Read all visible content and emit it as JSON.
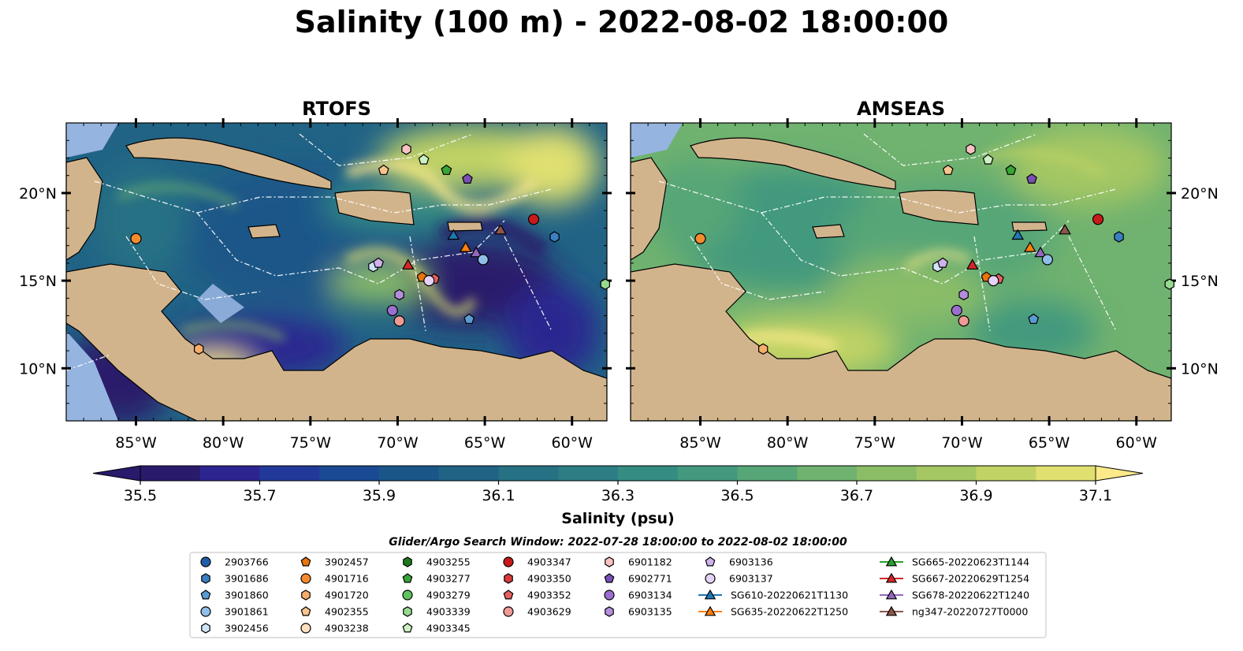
{
  "figure": {
    "title": "Salinity (100 m) - 2022-08-02 18:00:00"
  },
  "panels": [
    {
      "title": "RTOFS"
    },
    {
      "title": "AMSEAS"
    }
  ],
  "colors": {
    "land": "#d2b48c",
    "shelf": "#96b4e0",
    "colormap": [
      "#2a1a6b",
      "#2c2590",
      "#23399a",
      "#1a4a93",
      "#1b5688",
      "#216385",
      "#267184",
      "#2c7e84",
      "#348c82",
      "#43997e",
      "#57a677",
      "#70b26f",
      "#8bbd67",
      "#a5c763",
      "#c1d365",
      "#dfe070",
      "#fbe98a"
    ]
  },
  "chart_data": [
    {
      "type": "heatmap",
      "title": "RTOFS",
      "variable": "Salinity at 100 m",
      "lon_range": [
        -89,
        -58
      ],
      "lat_range": [
        7,
        24
      ],
      "x_ticks": [
        "85°W",
        "80°W",
        "75°W",
        "70°W",
        "65°W",
        "60°W"
      ],
      "y_ticks": [
        "20°N",
        "15°N",
        "10°N"
      ]
    },
    {
      "type": "heatmap",
      "title": "AMSEAS",
      "variable": "Salinity at 100 m",
      "lon_range": [
        -89,
        -58
      ],
      "lat_range": [
        7,
        24
      ],
      "x_ticks": [
        "85°W",
        "80°W",
        "75°W",
        "70°W",
        "65°W",
        "60°W"
      ],
      "y_ticks": [
        "20°N",
        "15°N",
        "10°N"
      ]
    }
  ],
  "colorbar": {
    "label": "Salinity (psu)",
    "min": 35.5,
    "max": 37.1,
    "step": 0.1,
    "ticks": [
      "35.5",
      "35.7",
      "35.9",
      "36.1",
      "36.3",
      "36.5",
      "36.7",
      "36.9",
      "37.1"
    ],
    "extend": "both"
  },
  "legend": {
    "title": "Glider/Argo Search Window: 2022-07-28 18:00:00 to 2022-08-02 18:00:00",
    "columns": [
      [
        {
          "label": "2903766",
          "marker": "circle",
          "color": "#1f5fa6"
        },
        {
          "label": "3901686",
          "marker": "hexagon",
          "color": "#3a7fc1"
        },
        {
          "label": "3901860",
          "marker": "pentagon",
          "color": "#5b9bd5"
        },
        {
          "label": "3901861",
          "marker": "circle",
          "color": "#8fbfe6"
        },
        {
          "label": "3902456",
          "marker": "hexagon",
          "color": "#cfe5f7"
        }
      ],
      [
        {
          "label": "3902457",
          "marker": "pentagon",
          "color": "#e8740c"
        },
        {
          "label": "4901716",
          "marker": "circle",
          "color": "#f58b2e"
        },
        {
          "label": "4901720",
          "marker": "hexagon",
          "color": "#f7ad6a"
        },
        {
          "label": "4902355",
          "marker": "pentagon",
          "color": "#f9c48f"
        },
        {
          "label": "4903238",
          "marker": "circle",
          "color": "#fde0c0"
        }
      ],
      [
        {
          "label": "4903255",
          "marker": "hexagon",
          "color": "#1e7a1e"
        },
        {
          "label": "4903277",
          "marker": "pentagon",
          "color": "#37a537"
        },
        {
          "label": "4903279",
          "marker": "circle",
          "color": "#5fc15f"
        },
        {
          "label": "4903339",
          "marker": "hexagon",
          "color": "#97da8f"
        },
        {
          "label": "4903345",
          "marker": "pentagon",
          "color": "#cdf1c4"
        }
      ],
      [
        {
          "label": "4903347",
          "marker": "circle",
          "color": "#c81a1a"
        },
        {
          "label": "4903350",
          "marker": "hexagon",
          "color": "#d93a3a"
        },
        {
          "label": "4903352",
          "marker": "pentagon",
          "color": "#e56060"
        },
        {
          "label": "4903629",
          "marker": "circle",
          "color": "#f09a96"
        }
      ],
      [
        {
          "label": "6901182",
          "marker": "hexagon",
          "color": "#f8c3c3"
        },
        {
          "label": "6902771",
          "marker": "pentagon",
          "color": "#7a4fb4"
        },
        {
          "label": "6903134",
          "marker": "circle",
          "color": "#9b6fd0"
        },
        {
          "label": "6903135",
          "marker": "hexagon",
          "color": "#b48edc"
        }
      ],
      [
        {
          "label": "6903136",
          "marker": "pentagon",
          "color": "#cfb2ec"
        },
        {
          "label": "6903137",
          "marker": "circle",
          "color": "#e6d2f6"
        },
        {
          "label": "SG610-20220621T1130",
          "marker": "triangle-line",
          "color": "#1f77b4"
        },
        {
          "label": "SG635-20220622T1250",
          "marker": "triangle-line",
          "color": "#ff7f0e"
        }
      ],
      [
        {
          "label": "SG665-20220623T1144",
          "marker": "triangle-line",
          "color": "#2ca02c"
        },
        {
          "label": "SG667-20220629T1254",
          "marker": "triangle-line",
          "color": "#d62728"
        },
        {
          "label": "SG678-20220622T1240",
          "marker": "triangle-line",
          "color": "#9467bd"
        },
        {
          "label": "ng347-20220727T0000",
          "marker": "triangle-line",
          "color": "#8c564b"
        }
      ]
    ]
  },
  "observations": [
    {
      "id": "4901716",
      "lon": -85,
      "lat": 17.4
    },
    {
      "id": "4901720",
      "lon": -81.4,
      "lat": 11.1
    },
    {
      "id": "4902355",
      "lon": -70.8,
      "lat": 21.3
    },
    {
      "id": "6901182",
      "lon": -69.5,
      "lat": 22.5
    },
    {
      "id": "4903345",
      "lon": -68.5,
      "lat": 21.9
    },
    {
      "id": "4903277",
      "lon": -67.2,
      "lat": 21.3
    },
    {
      "id": "6902771",
      "lon": -66,
      "lat": 20.8
    },
    {
      "id": "4903347",
      "lon": -62.2,
      "lat": 18.5
    },
    {
      "id": "3901686",
      "lon": -61,
      "lat": 17.5
    },
    {
      "id": "SG610-20220621T1130",
      "lon": -66.8,
      "lat": 17.6
    },
    {
      "id": "ng347-20220727T0000",
      "lon": -64.1,
      "lat": 17.9
    },
    {
      "id": "SG635-20220622T1250",
      "lon": -66.1,
      "lat": 16.9
    },
    {
      "id": "SG678-20220622T1240",
      "lon": -65.5,
      "lat": 16.6
    },
    {
      "id": "3901861",
      "lon": -65.1,
      "lat": 16.2
    },
    {
      "id": "SG667-20220629T1254",
      "lon": -69.4,
      "lat": 15.9
    },
    {
      "id": "3902456",
      "lon": -71.4,
      "lat": 15.8
    },
    {
      "id": "6903136",
      "lon": -71.1,
      "lat": 16
    },
    {
      "id": "3902457",
      "lon": -68.6,
      "lat": 15.2
    },
    {
      "id": "4903352",
      "lon": -67.9,
      "lat": 15.1
    },
    {
      "id": "6903137",
      "lon": -68.2,
      "lat": 15
    },
    {
      "id": "6903135",
      "lon": -69.9,
      "lat": 14.2
    },
    {
      "id": "6903134",
      "lon": -70.3,
      "lat": 13.3
    },
    {
      "id": "4903629",
      "lon": -69.9,
      "lat": 12.7
    },
    {
      "id": "3901860",
      "lon": -65.9,
      "lat": 12.8
    },
    {
      "id": "4903339",
      "lon": -58.1,
      "lat": 14.8
    }
  ]
}
